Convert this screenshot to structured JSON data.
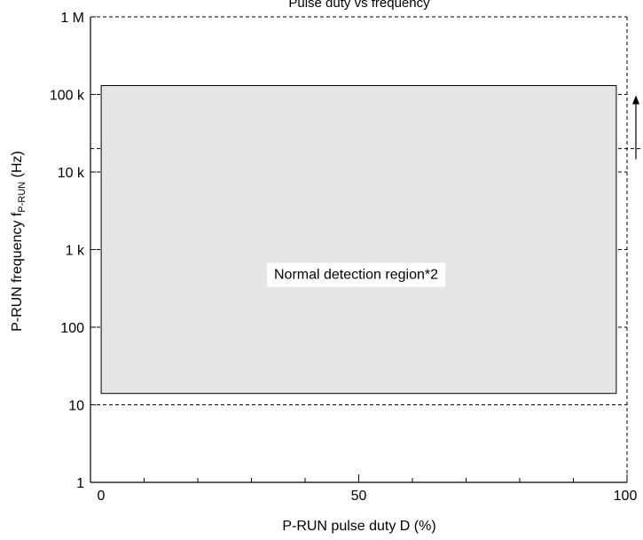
{
  "chart_data": {
    "type": "area",
    "title": "",
    "top_caption": "Pulse duty vs frequency",
    "xlabel": "P-RUN pulse duty  D  (%)",
    "ylabel_main": "P-RUN frequency  f",
    "ylabel_subscript": "P-RUN",
    "ylabel_unit": " (Hz)",
    "xlim": [
      0,
      100
    ],
    "ylim": [
      1,
      1000000
    ],
    "yscale": "log",
    "x_ticks": [
      {
        "value": 0,
        "label": "0"
      },
      {
        "value": 50,
        "label": "50"
      },
      {
        "value": 100,
        "label": "100"
      }
    ],
    "x_minor_ticks": [
      10,
      20,
      30,
      40,
      60,
      70,
      80,
      90
    ],
    "y_ticks": [
      {
        "value": 1,
        "label": "1"
      },
      {
        "value": 10,
        "label": "10"
      },
      {
        "value": 100,
        "label": "100"
      },
      {
        "value": 1000,
        "label": "1 k"
      },
      {
        "value": 10000,
        "label": "10 k"
      },
      {
        "value": 100000,
        "label": "100 k"
      },
      {
        "value": 1000000,
        "label": "1 M"
      }
    ],
    "gridlines_y": [
      10,
      100,
      1000,
      10000,
      100000
    ],
    "extra_dashed_line_y": 20000,
    "region": {
      "label": "Normal detection region*2",
      "x_range": [
        2,
        98
      ],
      "y_range": [
        14,
        130000
      ],
      "fill": "#e6e6e6"
    },
    "arrow": {
      "from_y": 20000,
      "to_y": 100000
    }
  }
}
